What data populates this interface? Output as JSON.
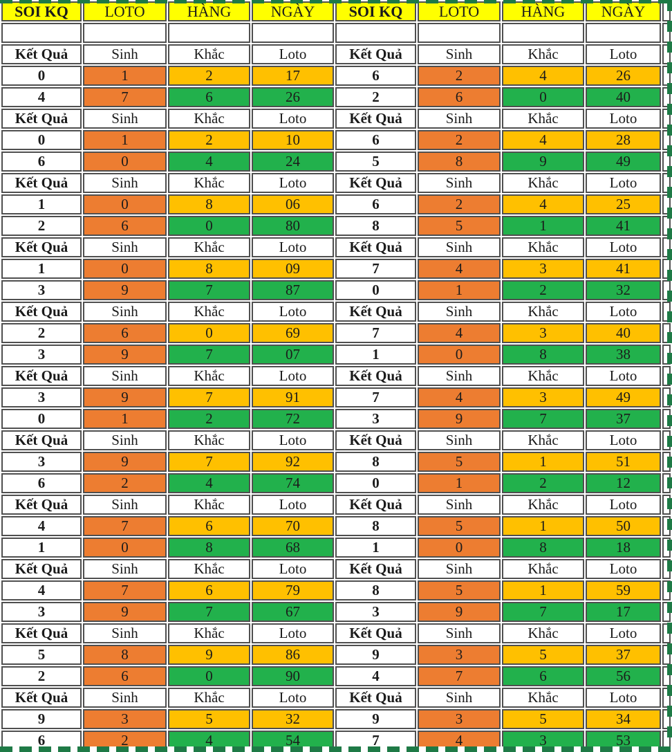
{
  "columns": [
    "SOI KQ",
    "LOTO",
    "HÀNG",
    "NGÀY",
    "SOI KQ",
    "LOTO",
    "HÀNG",
    "NGÀY"
  ],
  "sub_columns": [
    "Kết Quả",
    "Sinh",
    "Khắc",
    "Loto"
  ],
  "colors": {
    "header_bg": "#FFFF00",
    "sinh_bg": "#ED7D31",
    "first_row_bg": "#FFC000",
    "second_row_bg": "#22B14C",
    "grid_border": "#4F4F4F",
    "page_break_dash": "#1E7A46"
  },
  "blocks": [
    {
      "left": [
        [
          "0",
          "1",
          "2",
          "17"
        ],
        [
          "4",
          "7",
          "6",
          "26"
        ]
      ],
      "right": [
        [
          "6",
          "2",
          "4",
          "26"
        ],
        [
          "2",
          "6",
          "0",
          "40"
        ]
      ]
    },
    {
      "left": [
        [
          "0",
          "1",
          "2",
          "10"
        ],
        [
          "6",
          "0",
          "4",
          "24"
        ]
      ],
      "right": [
        [
          "6",
          "2",
          "4",
          "28"
        ],
        [
          "5",
          "8",
          "9",
          "49"
        ]
      ]
    },
    {
      "left": [
        [
          "1",
          "0",
          "8",
          "06"
        ],
        [
          "2",
          "6",
          "0",
          "80"
        ]
      ],
      "right": [
        [
          "6",
          "2",
          "4",
          "25"
        ],
        [
          "8",
          "5",
          "1",
          "41"
        ]
      ]
    },
    {
      "left": [
        [
          "1",
          "0",
          "8",
          "09"
        ],
        [
          "3",
          "9",
          "7",
          "87"
        ]
      ],
      "right": [
        [
          "7",
          "4",
          "3",
          "41"
        ],
        [
          "0",
          "1",
          "2",
          "32"
        ]
      ]
    },
    {
      "left": [
        [
          "2",
          "6",
          "0",
          "69"
        ],
        [
          "3",
          "9",
          "7",
          "07"
        ]
      ],
      "right": [
        [
          "7",
          "4",
          "3",
          "40"
        ],
        [
          "1",
          "0",
          "8",
          "38"
        ]
      ]
    },
    {
      "left": [
        [
          "3",
          "9",
          "7",
          "91"
        ],
        [
          "0",
          "1",
          "2",
          "72"
        ]
      ],
      "right": [
        [
          "7",
          "4",
          "3",
          "49"
        ],
        [
          "3",
          "9",
          "7",
          "37"
        ]
      ]
    },
    {
      "left": [
        [
          "3",
          "9",
          "7",
          "92"
        ],
        [
          "6",
          "2",
          "4",
          "74"
        ]
      ],
      "right": [
        [
          "8",
          "5",
          "1",
          "51"
        ],
        [
          "0",
          "1",
          "2",
          "12"
        ]
      ]
    },
    {
      "left": [
        [
          "4",
          "7",
          "6",
          "70"
        ],
        [
          "1",
          "0",
          "8",
          "68"
        ]
      ],
      "right": [
        [
          "8",
          "5",
          "1",
          "50"
        ],
        [
          "1",
          "0",
          "8",
          "18"
        ]
      ]
    },
    {
      "left": [
        [
          "4",
          "7",
          "6",
          "79"
        ],
        [
          "3",
          "9",
          "7",
          "67"
        ]
      ],
      "right": [
        [
          "8",
          "5",
          "1",
          "59"
        ],
        [
          "3",
          "9",
          "7",
          "17"
        ]
      ]
    },
    {
      "left": [
        [
          "5",
          "8",
          "9",
          "86"
        ],
        [
          "2",
          "6",
          "0",
          "90"
        ]
      ],
      "right": [
        [
          "9",
          "3",
          "5",
          "37"
        ],
        [
          "4",
          "7",
          "6",
          "56"
        ]
      ]
    },
    {
      "left": [
        [
          "9",
          "3",
          "5",
          "32"
        ],
        [
          "6",
          "2",
          "4",
          "54"
        ]
      ],
      "right": [
        [
          "9",
          "3",
          "5",
          "34"
        ],
        [
          "7",
          "4",
          "3",
          "53"
        ]
      ]
    }
  ]
}
